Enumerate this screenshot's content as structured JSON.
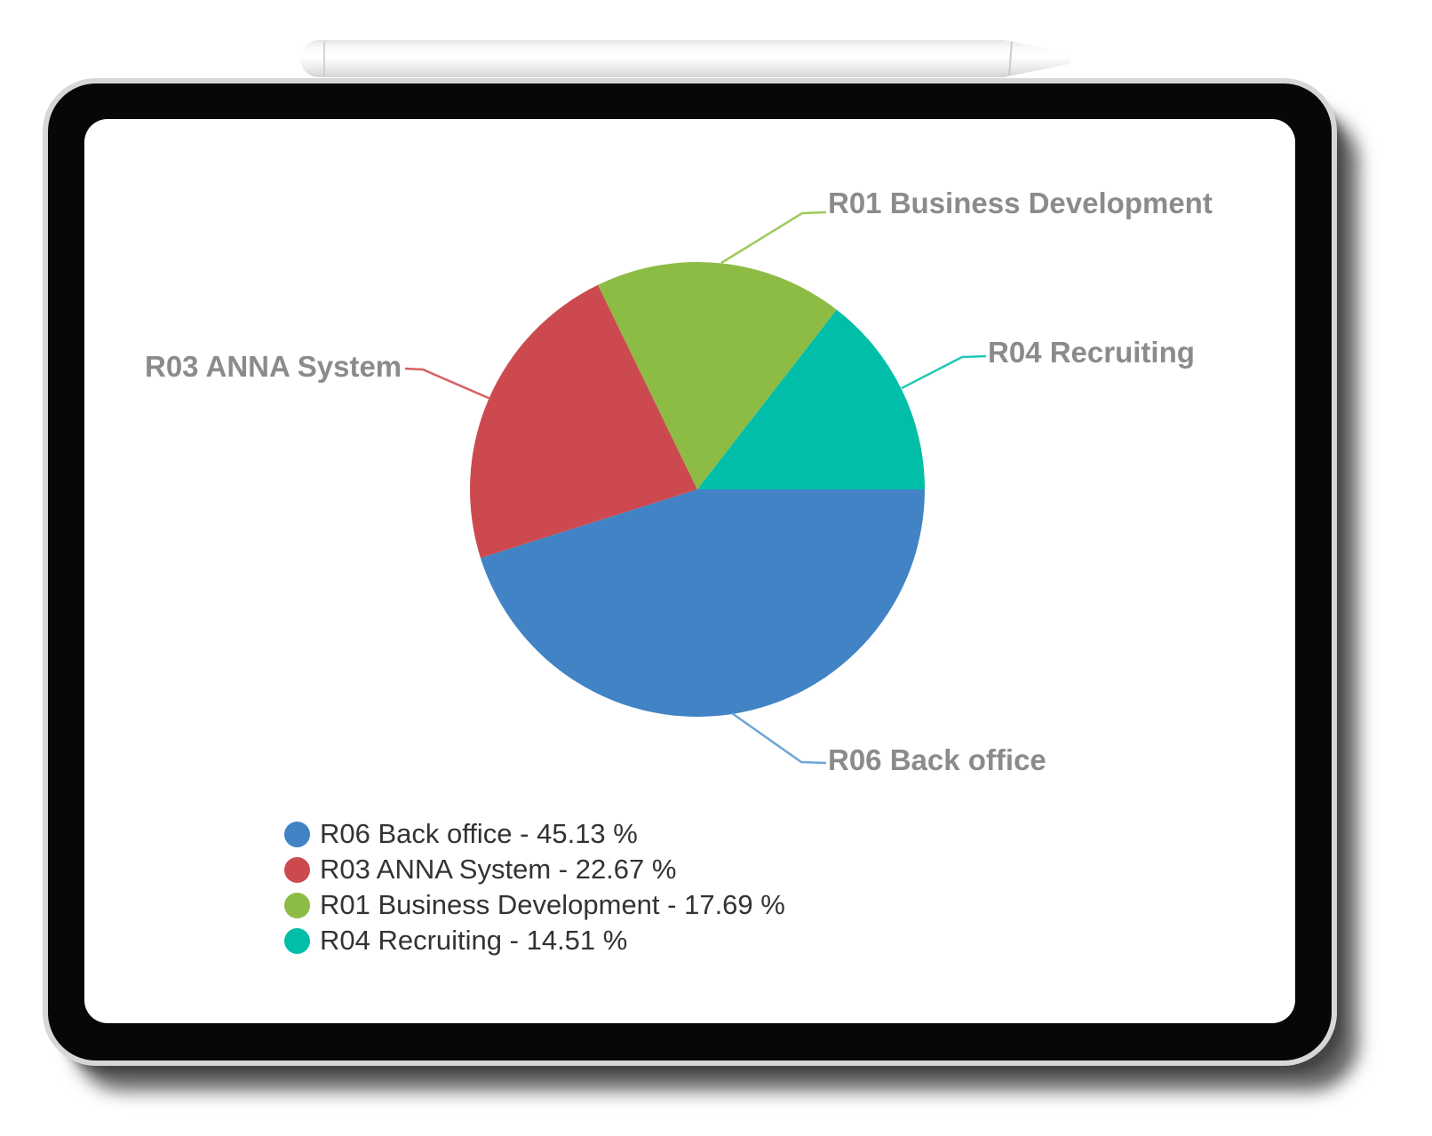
{
  "scene": {
    "device": "tablet",
    "accessory": "stylus-pencil"
  },
  "chart_data": {
    "type": "pie",
    "unit": "%",
    "start_angle_deg": 0,
    "direction": "clockwise",
    "legend_position": "bottom-left",
    "labels_color": "#8B8B8B",
    "legend_text_color": "#333333",
    "slices": [
      {
        "label": "R06 Back office",
        "value": 45.13,
        "color": "#4183C4",
        "line_color": "#6FA4D8",
        "legend_text": "R06 Back office - 45.13 %"
      },
      {
        "label": "R03 ANNA System",
        "value": 22.67,
        "color": "#CC4A4F",
        "line_color": "#D66063",
        "legend_text": "R03 ANNA System - 22.67 %"
      },
      {
        "label": "R01 Business Development",
        "value": 17.69,
        "color": "#8DBC45",
        "line_color": "#9FC95C",
        "legend_text": "R01 Business Development - 17.69 %"
      },
      {
        "label": "R04 Recruiting",
        "value": 14.51,
        "color": "#00BEA8",
        "line_color": "#22C8B4",
        "legend_text": "R04 Recruiting - 14.51 %"
      }
    ]
  }
}
